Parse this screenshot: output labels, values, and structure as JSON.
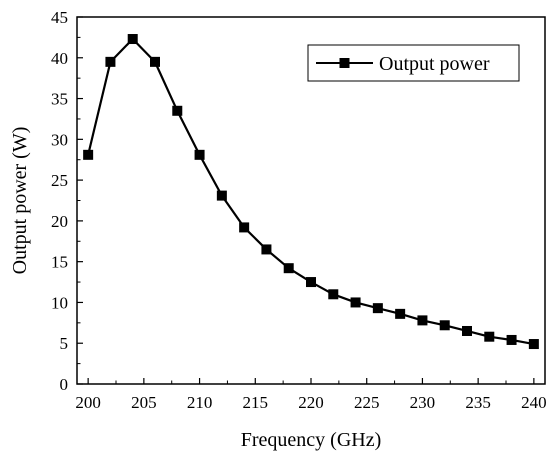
{
  "chart_data": {
    "type": "line",
    "xlabel": "Frequency (GHz)",
    "ylabel": "Output power (W)",
    "xlim": [
      199,
      241
    ],
    "ylim": [
      0,
      45
    ],
    "xticks": [
      200,
      205,
      210,
      215,
      220,
      225,
      230,
      235,
      240
    ],
    "yticks": [
      0,
      5,
      10,
      15,
      20,
      25,
      30,
      35,
      40,
      45
    ],
    "grid": false,
    "legend_position": "top-right",
    "series": [
      {
        "name": "Output power",
        "color": "#000000",
        "marker": "square",
        "x": [
          200,
          202,
          204,
          206,
          208,
          210,
          212,
          214,
          216,
          218,
          220,
          222,
          224,
          226,
          228,
          230,
          232,
          234,
          236,
          238,
          240
        ],
        "y": [
          28.1,
          39.5,
          42.3,
          39.5,
          33.5,
          28.1,
          23.1,
          19.2,
          16.5,
          14.2,
          12.5,
          11.0,
          10.0,
          9.3,
          8.6,
          7.8,
          7.2,
          6.5,
          5.8,
          5.4,
          4.9
        ]
      }
    ]
  }
}
